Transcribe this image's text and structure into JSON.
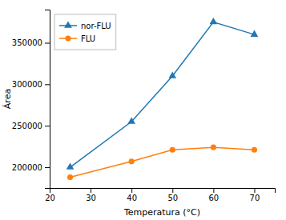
{
  "chart_data": {
    "type": "line",
    "x": [
      25,
      40,
      50,
      60,
      70
    ],
    "series": [
      {
        "name": "nor-FLU",
        "marker": "triangle",
        "values": [
          200000,
          255000,
          310000,
          375000,
          360000
        ]
      },
      {
        "name": "FLU",
        "marker": "circle",
        "values": [
          188000,
          207000,
          221000,
          224000,
          221000
        ]
      }
    ],
    "xlabel": "Temperatura (°C)",
    "ylabel": "Área",
    "xlim": [
      20,
      75
    ],
    "ylim": [
      175000,
      390000
    ],
    "xticks": [
      20,
      30,
      40,
      50,
      60,
      70
    ],
    "yticks": [
      200000,
      250000,
      300000,
      350000
    ],
    "grid": false,
    "legend": "upper left"
  }
}
